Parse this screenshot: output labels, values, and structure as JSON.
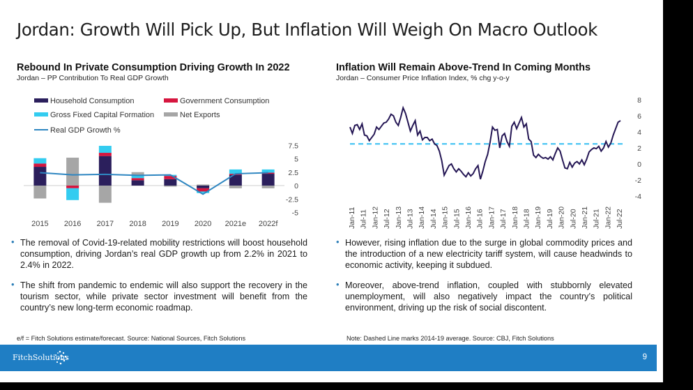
{
  "slide": {
    "title": "Jordan: Growth Will Pick Up, But Inflation Will Weigh On Macro Outlook",
    "page_number": "9",
    "brand": "FitchSolutions",
    "footer_color": "#1f7ec4"
  },
  "left_panel": {
    "title": "Rebound In Private Consumption Driving Growth In 2022",
    "subtitle": "Jordan – PP Contribution To Real GDP Growth",
    "bullets": [
      "The removal of Covid-19-related mobility restrictions will boost household consumption, driving Jordan’s real GDP growth up from 2.2% in 2021 to 2.4% in 2022.",
      "The shift from pandemic to endemic will also support the recovery in the tourism sector, while private sector investment will benefit from the country’s new long-term economic roadmap."
    ],
    "footnote": "e/f = Fitch Solutions estimate/forecast. Source: National Sources, Fitch Solutions"
  },
  "right_panel": {
    "title": "Inflation Will Remain Above-Trend In Coming Months",
    "subtitle": "Jordan – Consumer Price Inflation Index, % chg y-o-y",
    "bullets": [
      "However, rising inflation due to the surge in global commodity prices and the introduction of a new electricity tariff system, will cause headwinds to economic activity, keeping it subdued.",
      "Moreover, above-trend inflation, coupled with stubbornly elevated unemployment, will also negatively impact the country’s political environment, driving up the risk of social discontent."
    ],
    "footnote": "Note: Dashed Line marks 2014-19 average. Source: CBJ, Fitch Solutions"
  },
  "chart_data": [
    {
      "type": "bar",
      "stacked": true,
      "categories": [
        "2015",
        "2016",
        "2017",
        "2018",
        "2019",
        "2020",
        "2021e",
        "2022f"
      ],
      "ylim": [
        -5,
        7.5
      ],
      "yticks": [
        "7.5",
        "5",
        "2.5",
        "0",
        "-2.5",
        "-5"
      ],
      "ytick_values": [
        7.5,
        5,
        2.5,
        0,
        -2.5,
        -5
      ],
      "legend_position": "top-left",
      "series": [
        {
          "name": "Household Consumption",
          "color": "#2b1f5c",
          "values": [
            3.5,
            0,
            5.5,
            1.0,
            1.2,
            -0.5,
            2.0,
            2.2
          ]
        },
        {
          "name": "Government Consumption",
          "color": "#d6163f",
          "values": [
            0.6,
            -0.5,
            0.6,
            0.4,
            0.6,
            -0.6,
            0.2,
            0.2
          ]
        },
        {
          "name": "Gross Fixed Capital Formation",
          "color": "#33ccf0",
          "values": [
            1.0,
            -2.2,
            1.3,
            0.5,
            0.2,
            -0.3,
            0.8,
            0.6
          ]
        },
        {
          "name": "Net Exports",
          "color": "#a6a6a6",
          "values": [
            -2.4,
            5.2,
            -3.2,
            0.6,
            -0.2,
            0.2,
            -0.5,
            -0.5
          ]
        }
      ],
      "line": {
        "name": "Real GDP Growth %",
        "color": "#2e86c1",
        "values": [
          2.4,
          2.0,
          2.1,
          1.9,
          2.0,
          -1.6,
          2.2,
          2.4
        ]
      }
    },
    {
      "type": "line",
      "x_labels": [
        "Jan-11",
        "Jul-11",
        "Jan-12",
        "Jul-12",
        "Jan-13",
        "Jul-13",
        "Jan-14",
        "Jul-14",
        "Jan-15",
        "Jul-15",
        "Jan-16",
        "Jul-16",
        "Jan-17",
        "Jul-17",
        "Jan-18",
        "Jul-18",
        "Jan-19",
        "Jul-19",
        "Jan-20",
        "Jul-20",
        "Jan-21",
        "Jul-21",
        "Jan-22",
        "Jul-22"
      ],
      "ylim": [
        -4,
        8
      ],
      "yticks": [
        "8",
        "6",
        "4",
        "2",
        "0",
        "-2",
        "-4"
      ],
      "ytick_values": [
        8,
        6,
        4,
        2,
        0,
        -2,
        -4
      ],
      "average_line": {
        "value": 2.5,
        "color": "#33bdf2"
      },
      "series": [
        {
          "color": "#241654",
          "values": [
            4.6,
            3.8,
            4.8,
            4.9,
            4.3,
            5.0,
            3.6,
            3.5,
            2.9,
            3.3,
            3.7,
            4.6,
            4.3,
            4.7,
            5.1,
            5.2,
            5.6,
            6.2,
            6.0,
            5.2,
            4.8,
            5.8,
            7.0,
            6.3,
            5.2,
            4.1,
            4.8,
            5.4,
            3.6,
            4.1,
            3.0,
            3.3,
            3.3,
            2.9,
            3.1,
            2.5,
            2.3,
            1.6,
            0.4,
            -1.4,
            -0.8,
            -0.2,
            0.0,
            -0.6,
            -1.0,
            -0.6,
            -0.9,
            -1.3,
            -1.6,
            -1.1,
            -1.5,
            -1.2,
            -0.6,
            -0.2,
            -1.9,
            -0.9,
            0.3,
            1.2,
            2.7,
            4.6,
            4.2,
            4.3,
            2.0,
            3.5,
            3.8,
            2.8,
            2.2,
            4.7,
            5.2,
            4.4,
            5.1,
            5.8,
            4.6,
            5.0,
            3.1,
            2.8,
            1.1,
            0.8,
            1.2,
            0.9,
            0.7,
            0.8,
            0.6,
            0.9,
            0.5,
            1.3,
            2.0,
            1.6,
            0.5,
            -0.5,
            -0.6,
            0.2,
            -0.4,
            0.1,
            0.3,
            0.0,
            0.5,
            -0.1,
            0.6,
            1.5,
            1.8,
            2.0,
            1.9,
            2.2,
            1.6,
            2.0,
            2.8,
            2.1,
            2.6,
            3.6,
            4.4,
            5.2,
            5.4
          ]
        }
      ]
    }
  ]
}
